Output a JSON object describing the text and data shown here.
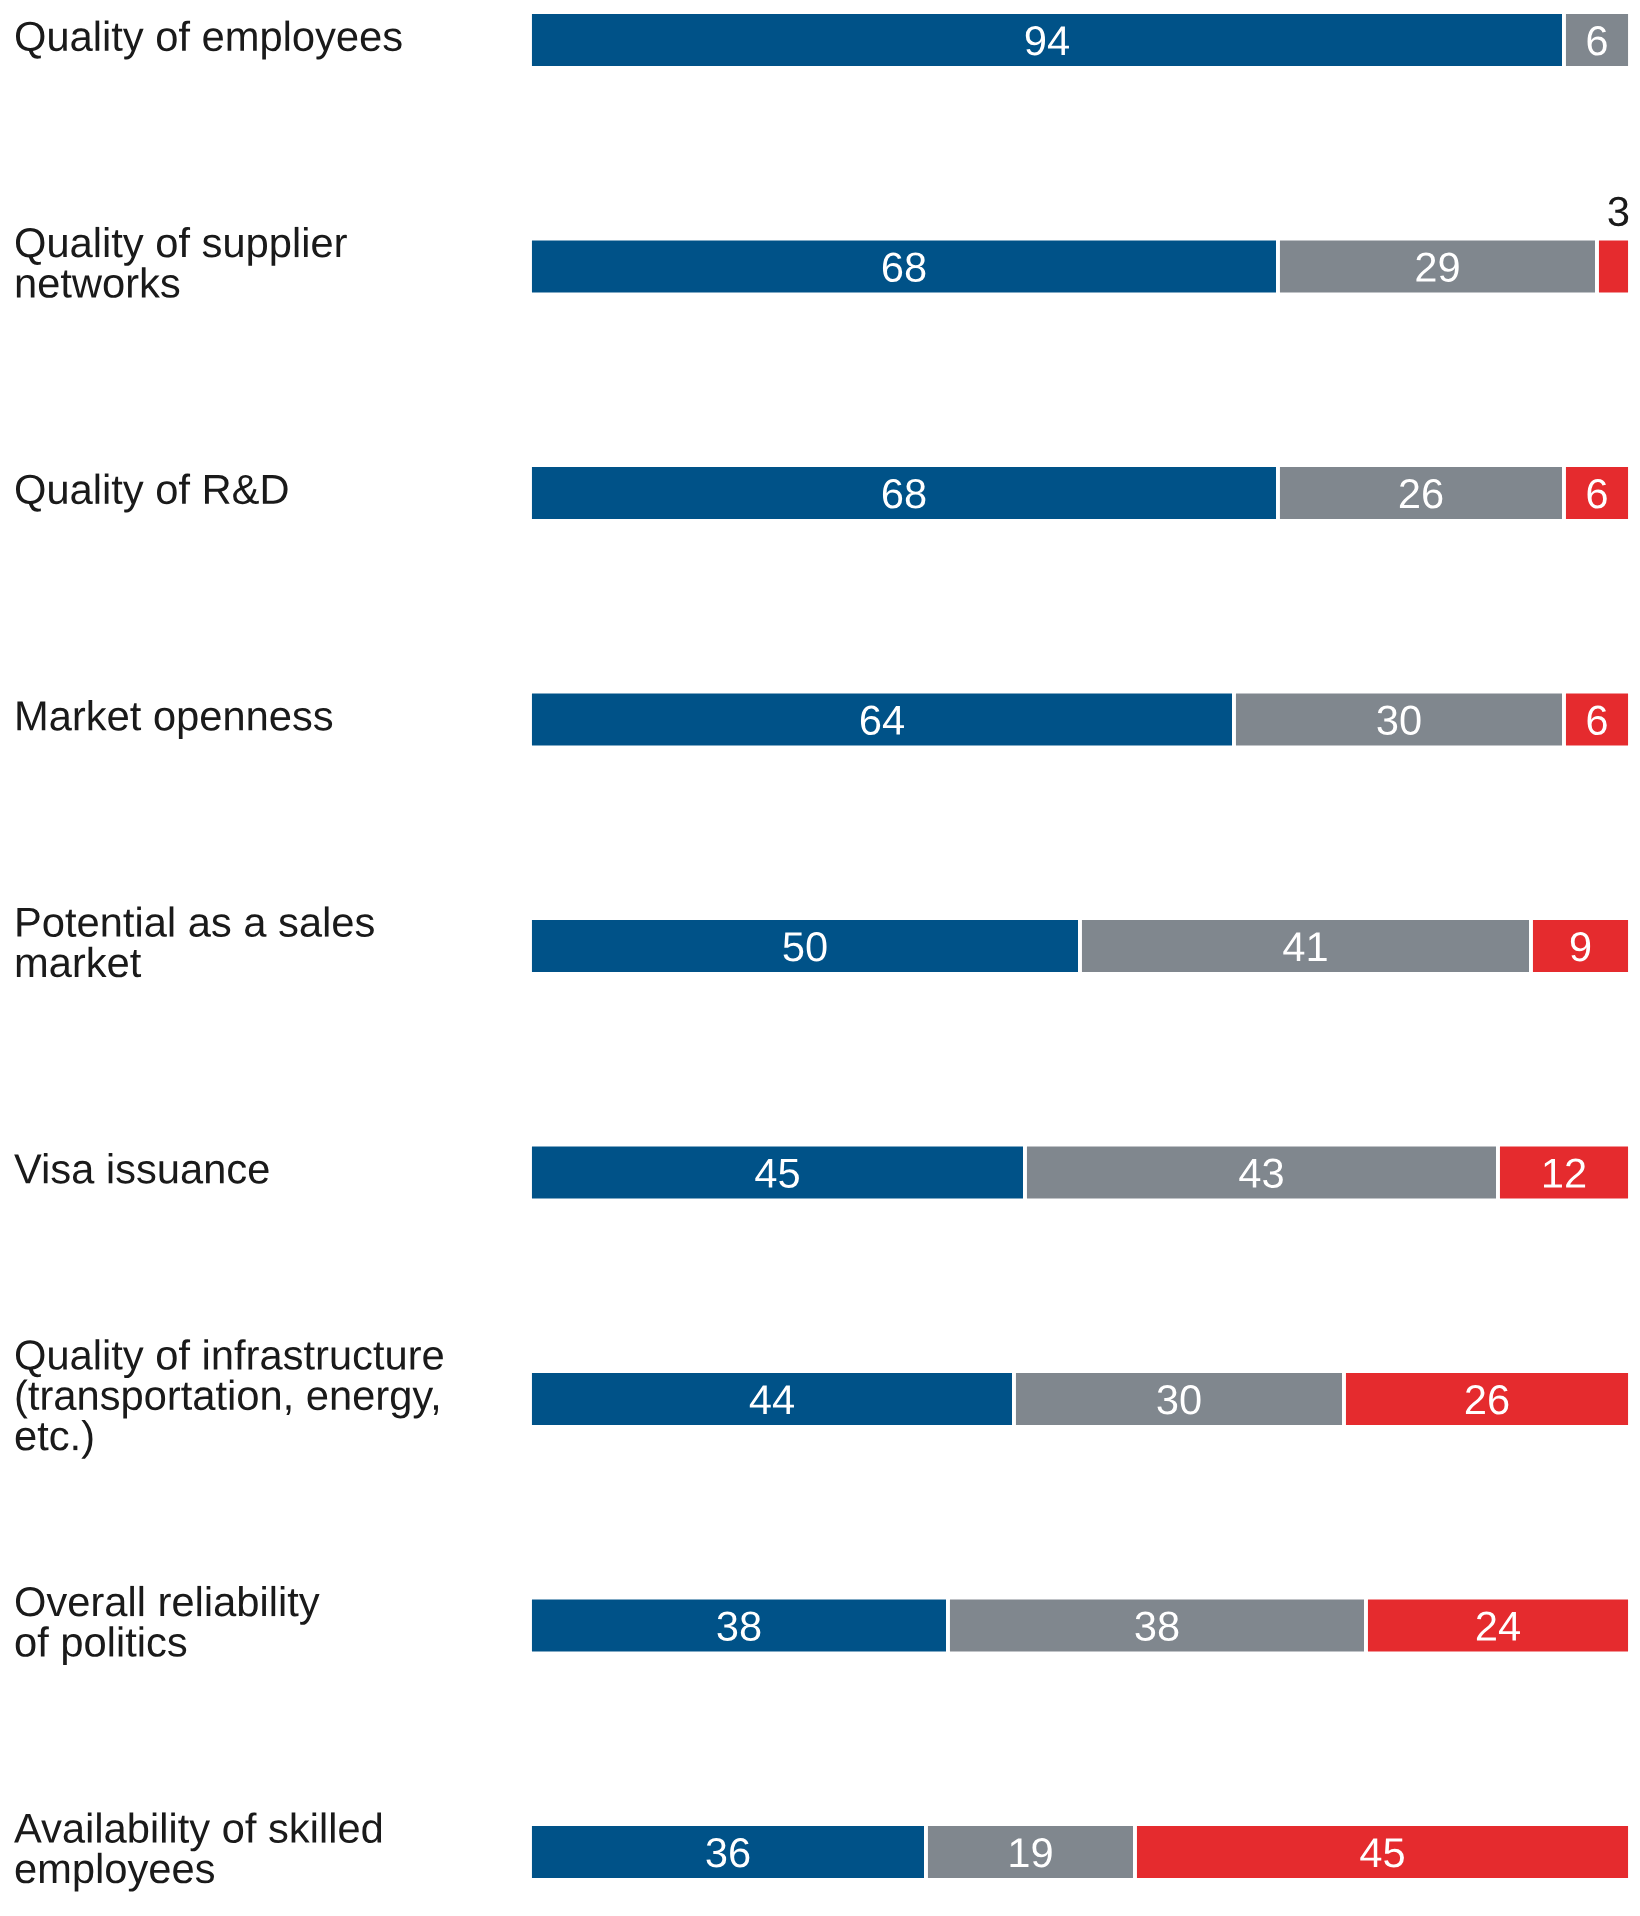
{
  "chart_data": {
    "type": "bar",
    "orientation": "horizontal",
    "stacked": true,
    "categories": [
      "Quality of employees",
      "Quality of supplier\nnetworks",
      "Quality of R&D",
      "Market openness",
      "Potential as a sales\nmarket",
      "Visa issuance",
      "Quality of infrastructure\n(transportation, energy,\netc.)",
      "Overall reliability\nof politics",
      "Availability of skilled\nemployees"
    ],
    "series": [
      {
        "color": "#005288",
        "values": [
          94,
          68,
          68,
          64,
          50,
          45,
          44,
          38,
          36
        ]
      },
      {
        "color": "#80878e",
        "values": [
          6,
          29,
          26,
          30,
          41,
          43,
          30,
          38,
          19
        ]
      },
      {
        "color": "#e52b2e",
        "values": [
          null,
          3,
          6,
          6,
          9,
          12,
          26,
          24,
          45
        ]
      }
    ],
    "xlim": [
      0,
      100
    ],
    "data_labels": true,
    "tick_labels": "y"
  }
}
